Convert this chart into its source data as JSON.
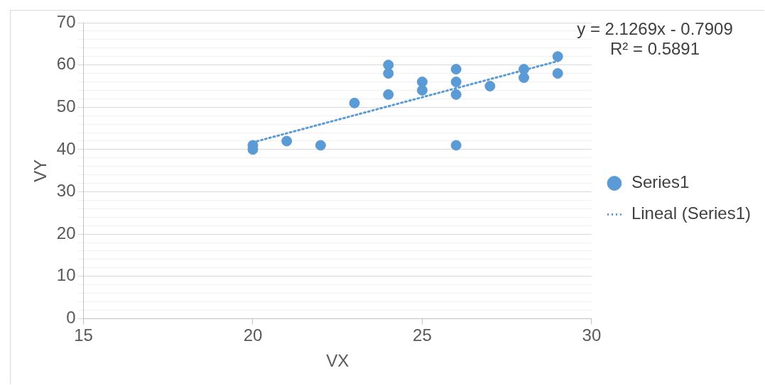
{
  "chart_data": {
    "type": "scatter",
    "xlabel": "VX",
    "ylabel": "VY",
    "annotations": [
      "y = 2.1269x - 0.7909",
      "R² = 0.5891"
    ],
    "xlim": [
      15,
      30
    ],
    "xticks": [
      15,
      20,
      25,
      30
    ],
    "ylim": [
      0,
      70
    ],
    "yticks": [
      0,
      {
        "value": 2,
        "label": null
      },
      {
        "value": 4,
        "label": null
      },
      {
        "value": 6,
        "label": null
      },
      {
        "value": 8,
        "label": null
      },
      10,
      {
        "value": 12,
        "label": null
      },
      {
        "value": 14,
        "label": null
      },
      {
        "value": 16,
        "label": null
      },
      {
        "value": 18,
        "label": null
      },
      20,
      {
        "value": 22,
        "label": null
      },
      {
        "value": 24,
        "label": null
      },
      {
        "value": 26,
        "label": null
      },
      {
        "value": 28,
        "label": null
      },
      30,
      {
        "value": 32,
        "label": null
      },
      {
        "value": 34,
        "label": null
      },
      {
        "value": 36,
        "label": null
      },
      {
        "value": 38,
        "label": null
      },
      40,
      {
        "value": 42,
        "label": null
      },
      {
        "value": 44,
        "label": null
      },
      {
        "value": 46,
        "label": null
      },
      {
        "value": 48,
        "label": null
      },
      50,
      {
        "value": 52,
        "label": null
      },
      {
        "value": 54,
        "label": null
      },
      {
        "value": 56,
        "label": null
      },
      {
        "value": 58,
        "label": null
      },
      60,
      {
        "value": 62,
        "label": null
      },
      {
        "value": 64,
        "label": null
      },
      {
        "value": 66,
        "label": null
      },
      {
        "value": 68,
        "label": null
      },
      70
    ],
    "grid": "y",
    "legend": "right",
    "series": [
      {
        "name": "Series1",
        "marker": "circle",
        "color": "#5b9bd5",
        "x": [
          20,
          20,
          21,
          22,
          23,
          24,
          24,
          24,
          25,
          25,
          26,
          26,
          26,
          26,
          27,
          28,
          28,
          29,
          29
        ],
        "values": [
          41,
          40,
          42,
          41,
          51,
          60,
          58,
          53,
          56,
          54,
          59,
          56,
          53,
          41,
          55,
          59,
          57,
          62,
          58
        ]
      },
      {
        "name": "Lineal (Series1)",
        "type": "line",
        "marker": "none",
        "line_style": "dotted",
        "color": "#5b9bd5",
        "x": [
          20,
          29
        ],
        "values": [
          41.7,
          60.9
        ]
      }
    ]
  }
}
